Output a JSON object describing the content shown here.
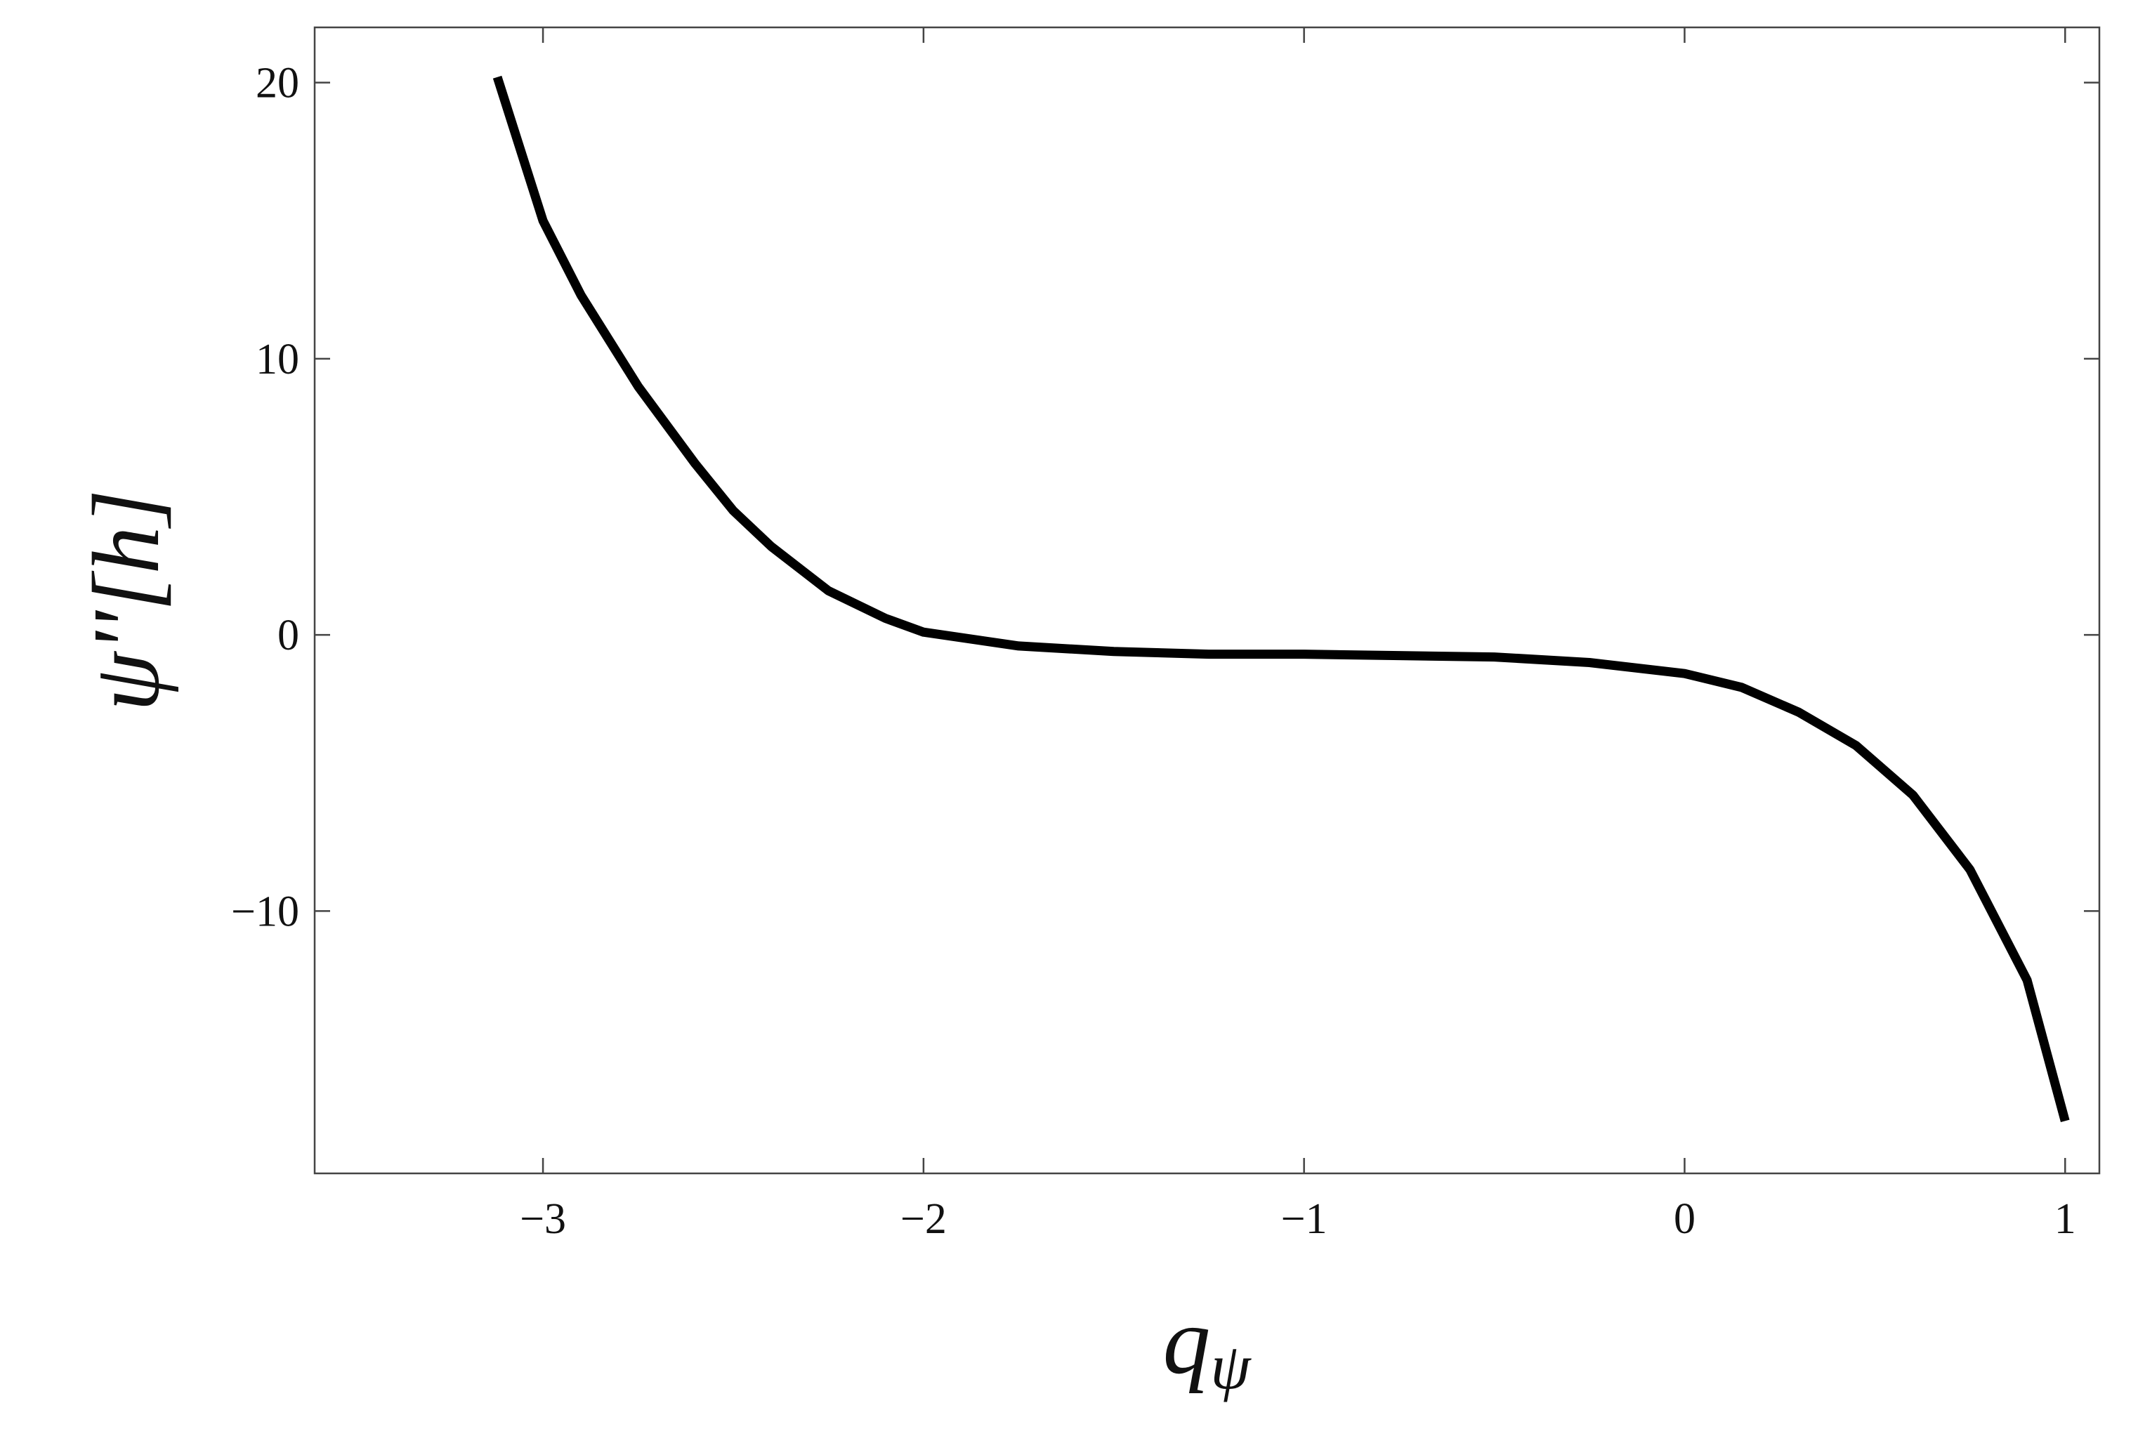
{
  "chart_data": {
    "type": "line",
    "x_label": {
      "base": "q",
      "sub": "ψ"
    },
    "y_label": "ψ''[h]",
    "x": [
      -3.12,
      -3.0,
      -2.9,
      -2.75,
      -2.6,
      -2.5,
      -2.4,
      -2.25,
      -2.1,
      -2.0,
      -1.75,
      -1.5,
      -1.25,
      -1.0,
      -0.75,
      -0.5,
      -0.25,
      0.0,
      0.15,
      0.3,
      0.45,
      0.6,
      0.75,
      0.9,
      1.0
    ],
    "series": [
      {
        "color": "#000000",
        "values": [
          20.2,
          15.0,
          12.3,
          9.0,
          6.2,
          4.5,
          3.2,
          1.6,
          0.6,
          0.1,
          -0.4,
          -0.6,
          -0.7,
          -0.7,
          -0.75,
          -0.8,
          -1.0,
          -1.4,
          -1.9,
          -2.8,
          -4.0,
          -5.8,
          -8.5,
          -12.5,
          -17.6
        ]
      }
    ],
    "xlim": [
      -3.6,
      1.09
    ],
    "ylim": [
      -19.5,
      22
    ],
    "xticks": [
      {
        "value": -3,
        "label": "−3"
      },
      {
        "value": -2,
        "label": "−2"
      },
      {
        "value": -1,
        "label": "−1"
      },
      0,
      1
    ],
    "yticks": [
      {
        "value": -10,
        "label": "−10"
      },
      0,
      10,
      20
    ],
    "grid": false
  }
}
